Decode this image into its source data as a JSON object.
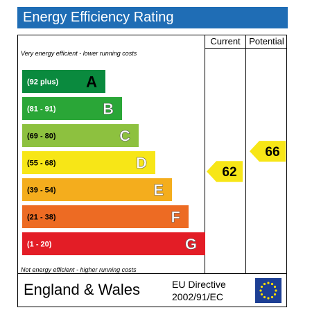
{
  "header": {
    "title": "Energy Efficiency Rating"
  },
  "columns": {
    "current": "Current",
    "potential": "Potential"
  },
  "notes": {
    "top": "Very energy efficient - lower running costs",
    "bottom": "Not energy efficient - higher running costs"
  },
  "footer": {
    "region": "England & Wales",
    "directive_line1": "EU Directive",
    "directive_line2": "2002/91/EC",
    "flag_icon": "eu-flag-icon"
  },
  "chart_data": {
    "type": "bar",
    "title": "Energy Efficiency Rating",
    "bands": [
      {
        "letter": "A",
        "range": "(92 plus)",
        "min": 92,
        "max": 100,
        "color": "#0a8a3e"
      },
      {
        "letter": "B",
        "range": "(81 - 91)",
        "min": 81,
        "max": 91,
        "color": "#2aa637"
      },
      {
        "letter": "C",
        "range": "(69 - 80)",
        "min": 69,
        "max": 80,
        "color": "#8dc13f"
      },
      {
        "letter": "D",
        "range": "(55 - 68)",
        "min": 55,
        "max": 68,
        "color": "#f7e617"
      },
      {
        "letter": "E",
        "range": "(39 - 54)",
        "min": 39,
        "max": 54,
        "color": "#f4ad1d"
      },
      {
        "letter": "F",
        "range": "(21 - 38)",
        "min": 21,
        "max": 38,
        "color": "#ed6b23"
      },
      {
        "letter": "G",
        "range": "(1 - 20)",
        "min": 1,
        "max": 20,
        "color": "#e31d26"
      }
    ],
    "current": {
      "value": 62,
      "band": "D",
      "color": "#f7e617"
    },
    "potential": {
      "value": 66,
      "band": "D",
      "color": "#f7e617"
    }
  }
}
